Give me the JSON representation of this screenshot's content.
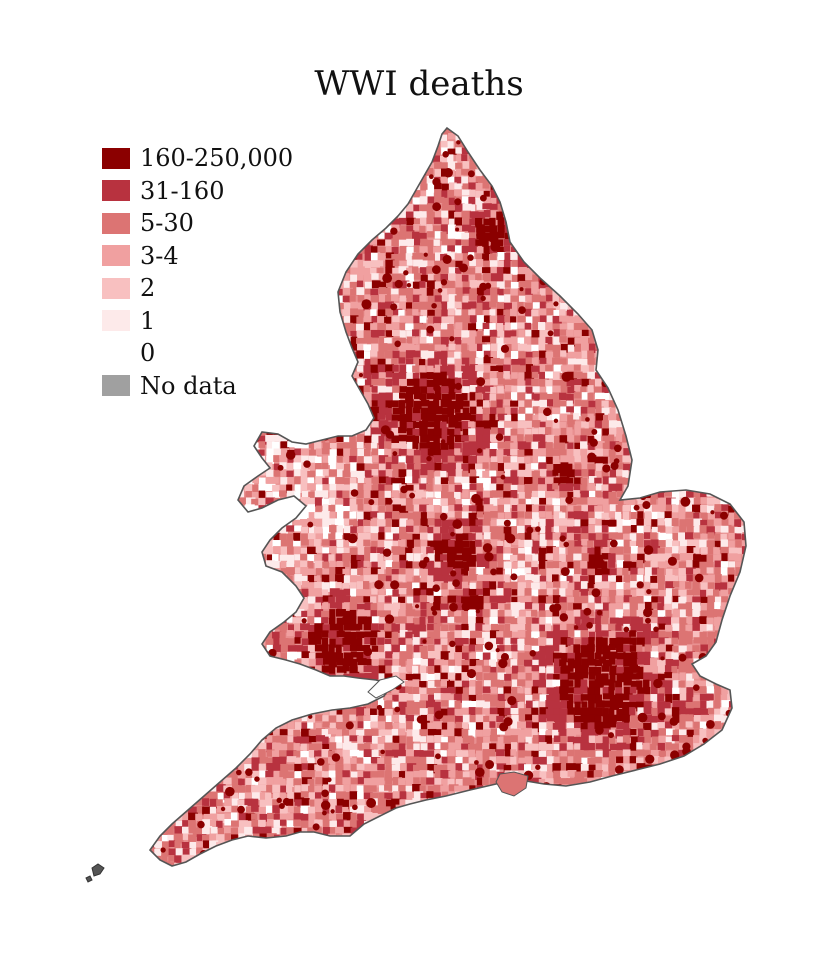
{
  "title": "WWI deaths",
  "legend": [
    {
      "label": "160-250,000",
      "color": "#8b0000"
    },
    {
      "label": "31-160",
      "color": "#b8323f"
    },
    {
      "label": "5-30",
      "color": "#dc7473"
    },
    {
      "label": "3-4",
      "color": "#f0a0a0"
    },
    {
      "label": "2",
      "color": "#f8c0c0"
    },
    {
      "label": "1",
      "color": "#fdeaea"
    },
    {
      "label": "0",
      "color": "#ffffff"
    },
    {
      "label": "No data",
      "color": "#a0a0a0"
    }
  ],
  "map": {
    "region": "England and Wales",
    "outline_color": "#555555",
    "hotspots": [
      "London",
      "Cardiff",
      "Birmingham",
      "Manchester",
      "Leeds",
      "Newcastle"
    ]
  }
}
